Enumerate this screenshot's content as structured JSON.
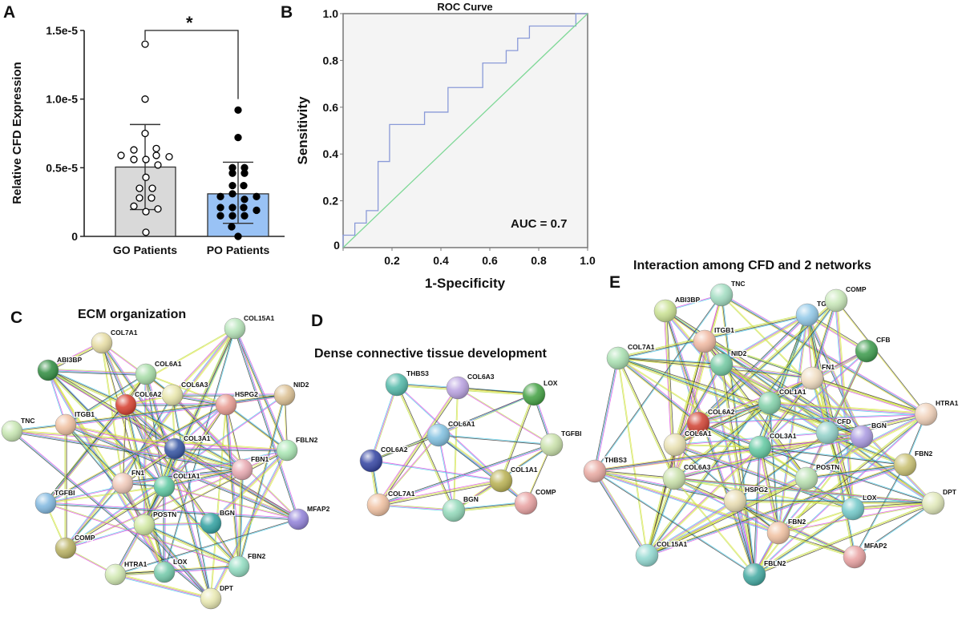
{
  "chart_data": [
    {
      "panel": "A",
      "type": "bar",
      "ylabel": "Relative CFD Expression",
      "xlabel": "",
      "ylim": [
        0,
        1.5e-05
      ],
      "yticks": [
        "0",
        "0.5e-5",
        "1.0e-5",
        "1.5e-5"
      ],
      "categories": [
        "GO Patients",
        "PO Patients"
      ],
      "values": [
        5.05e-06,
        3.1e-06
      ],
      "error_upper": [
        8.15e-06,
        5.4e-06
      ],
      "error_lower": [
        1.95e-06,
        9.5e-07
      ],
      "bar_colors": [
        "#d9d9d9",
        "#99c2f5"
      ],
      "points": [
        [
          1.4e-05,
          1e-05,
          7.5e-06,
          6.3e-06,
          6.4e-06,
          5.9e-06,
          5.9e-06,
          5.8e-06,
          5.6e-06,
          5.6e-06,
          5.2e-06,
          4.3e-06,
          3.5e-06,
          3.5e-06,
          2.8e-06,
          2.8e-06,
          2.2e-06,
          2e-06,
          1.8e-06,
          3e-07
        ],
        [
          9.2e-06,
          7.2e-06,
          5e-06,
          5e-06,
          4.6e-06,
          4.6e-06,
          3.7e-06,
          3.7e-06,
          3.1e-06,
          2.9e-06,
          2.9e-06,
          2.7e-06,
          2.1e-06,
          2.1e-06,
          2.1e-06,
          1.9e-06,
          1.5e-06,
          1.5e-06,
          1.5e-06,
          7e-07,
          0.0
        ]
      ],
      "point_styles": [
        "open",
        "filled"
      ],
      "significance": "*",
      "grid": false
    },
    {
      "panel": "B",
      "type": "line",
      "title": "ROC Curve",
      "xlabel": "1-Specificity",
      "ylabel": "Sensitivity",
      "xlim": [
        0,
        1
      ],
      "ylim": [
        0,
        1
      ],
      "xticks": [
        "0",
        "0.2",
        "0.4",
        "0.6",
        "0.8",
        "1.0"
      ],
      "yticks": [
        "0.2",
        "0.4",
        "0.6",
        "0.8",
        "1.0"
      ],
      "series": [
        {
          "color": "#8a9ad8",
          "x": [
            0,
            0,
            0.048,
            0.048,
            0.095,
            0.095,
            0.143,
            0.143,
            0.19,
            0.19,
            0.333,
            0.333,
            0.429,
            0.429,
            0.571,
            0.571,
            0.667,
            0.667,
            0.714,
            0.714,
            0.762,
            0.762,
            0.952,
            0.952,
            1.0
          ],
          "y": [
            0,
            0.053,
            0.053,
            0.105,
            0.105,
            0.158,
            0.158,
            0.368,
            0.368,
            0.526,
            0.526,
            0.579,
            0.579,
            0.684,
            0.684,
            0.789,
            0.789,
            0.842,
            0.842,
            0.895,
            0.895,
            0.947,
            0.947,
            1.0,
            1.0
          ]
        },
        {
          "color": "#7fd897",
          "x": [
            0,
            1
          ],
          "y": [
            0,
            1
          ]
        }
      ],
      "annotation": "AUC = 0.7",
      "background": "#f4f4f4",
      "grid": false
    }
  ],
  "panels": {
    "A": {
      "letter": "A"
    },
    "B": {
      "letter": "B"
    },
    "C": {
      "letter": "C",
      "title": "ECM organization"
    },
    "D": {
      "letter": "D",
      "title": "Dense connective tissue development"
    },
    "E": {
      "letter": "E",
      "title": "Interaction among CFD and 2 networks"
    }
  },
  "networks": {
    "C": {
      "nodes": [
        {
          "label": "COL15A1",
          "color": "#b5e4b8"
        },
        {
          "label": "COL7A1",
          "color": "#e6dca2"
        },
        {
          "label": "ABI3BP",
          "color": "#2e8b3e"
        },
        {
          "label": "COL6A1",
          "color": "#a6dca6"
        },
        {
          "label": "COL6A3",
          "color": "#e8e6aa"
        },
        {
          "label": "COL6A2",
          "color": "#d63c2c"
        },
        {
          "label": "HSPG2",
          "color": "#e89a90"
        },
        {
          "label": "NID2",
          "color": "#dcc092"
        },
        {
          "label": "TNC",
          "color": "#c6e6b0"
        },
        {
          "label": "ITGB1",
          "color": "#f0c0a0"
        },
        {
          "label": "COL3A1",
          "color": "#3050a0"
        },
        {
          "label": "FBLN2",
          "color": "#a8e6b2"
        },
        {
          "label": "FBN1",
          "color": "#e8a8b0"
        },
        {
          "label": "FN1",
          "color": "#f0c8b8"
        },
        {
          "label": "COL1A1",
          "color": "#5cc8a0"
        },
        {
          "label": "TGFBI",
          "color": "#80b8e0"
        },
        {
          "label": "MFAP2",
          "color": "#9080d8"
        },
        {
          "label": "POSTN",
          "color": "#d0e8a0"
        },
        {
          "label": "BGN",
          "color": "#2ea0a0"
        },
        {
          "label": "COMP",
          "color": "#b8b060"
        },
        {
          "label": "FBN2",
          "color": "#90dcc0"
        },
        {
          "label": "HTRA1",
          "color": "#d0e8b0"
        },
        {
          "label": "LOX",
          "color": "#70c8a8"
        },
        {
          "label": "DPT",
          "color": "#e8e8b0"
        }
      ]
    },
    "D": {
      "nodes": [
        {
          "label": "THBS3",
          "color": "#50b8a8"
        },
        {
          "label": "COL6A3",
          "color": "#b8a0e0"
        },
        {
          "label": "LOX",
          "color": "#40a040"
        },
        {
          "label": "COL6A1",
          "color": "#80c0e0"
        },
        {
          "label": "TGFBI",
          "color": "#c8e0a8"
        },
        {
          "label": "COL6A2",
          "color": "#3040a0"
        },
        {
          "label": "COL1A1",
          "color": "#b8b050"
        },
        {
          "label": "COL7A1",
          "color": "#f0c0a0"
        },
        {
          "label": "BGN",
          "color": "#90d8b8"
        },
        {
          "label": "COMP",
          "color": "#e8a0a0"
        }
      ]
    },
    "E": {
      "nodes": [
        {
          "label": "ABI3BP",
          "color": "#c8e090"
        },
        {
          "label": "TNC",
          "color": "#a0dcc0"
        },
        {
          "label": "TGFBI",
          "color": "#90c8e8"
        },
        {
          "label": "COMP",
          "color": "#c8e8b8"
        },
        {
          "label": "ITGB1",
          "color": "#f0b8a0"
        },
        {
          "label": "COL7A1",
          "color": "#a8e0b0"
        },
        {
          "label": "CFB",
          "color": "#3a9a4a"
        },
        {
          "label": "NID2",
          "color": "#70c8a0"
        },
        {
          "label": "FN1",
          "color": "#f0dcc0"
        },
        {
          "label": "COL1A1",
          "color": "#80d0a8"
        },
        {
          "label": "HTRA1",
          "color": "#f0d0b8"
        },
        {
          "label": "COL6A2",
          "color": "#d04030"
        },
        {
          "label": "CFD",
          "color": "#90d0c8"
        },
        {
          "label": "BGN",
          "color": "#a898e0"
        },
        {
          "label": "COL6A1",
          "color": "#e8e0b0"
        },
        {
          "label": "COL3A1",
          "color": "#60c8a0"
        },
        {
          "label": "THBS3",
          "color": "#e8a8a0"
        },
        {
          "label": "FBN2",
          "color": "#c8c070"
        },
        {
          "label": "COL6A3",
          "color": "#c8e0a8"
        },
        {
          "label": "POSTN",
          "color": "#b8e0b0"
        },
        {
          "label": "HSPG2",
          "color": "#e8dcb0"
        },
        {
          "label": "LOX",
          "color": "#70c8c8"
        },
        {
          "label": "DPT",
          "color": "#e0e8b8"
        },
        {
          "label": "FBN2",
          "color": "#f0c0a0"
        },
        {
          "label": "COL15A1",
          "color": "#90d8d0"
        },
        {
          "label": "MFAP2",
          "color": "#e8a0a0"
        },
        {
          "label": "FBLN2",
          "color": "#40a8a0"
        }
      ]
    },
    "edge_colors": [
      "#b8e04a",
      "#e040e0",
      "#40c8e8",
      "#333333",
      "#e6e640"
    ]
  }
}
